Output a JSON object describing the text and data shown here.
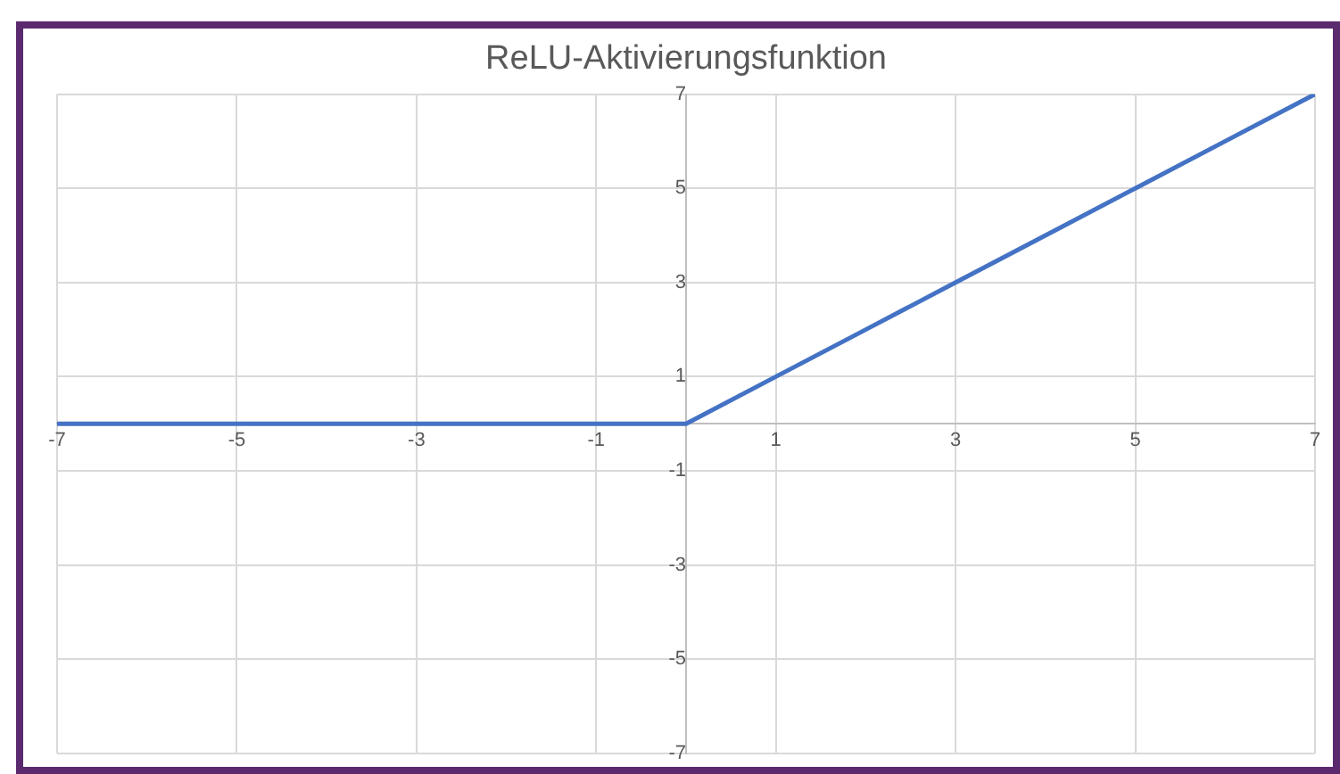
{
  "chart_data": {
    "type": "line",
    "title": "ReLU-Aktivierungsfunktion",
    "x": [
      -7,
      -6,
      -5,
      -4,
      -3,
      -2,
      -1,
      0,
      1,
      2,
      3,
      4,
      5,
      6,
      7
    ],
    "series": [
      {
        "color": "#4472c4",
        "values": [
          0,
          0,
          0,
          0,
          0,
          0,
          0,
          0,
          1,
          2,
          3,
          4,
          5,
          6,
          7
        ]
      }
    ],
    "xlim": [
      -7,
      7
    ],
    "xticks": [
      -7,
      -5,
      -3,
      -1,
      1,
      3,
      5,
      7
    ],
    "ylim": [
      -7,
      7
    ],
    "yticks": [
      -7,
      -5,
      -3,
      -1,
      1,
      3,
      5,
      7
    ],
    "grid": true,
    "legend": false,
    "marker": "none",
    "line_style": "solid"
  }
}
